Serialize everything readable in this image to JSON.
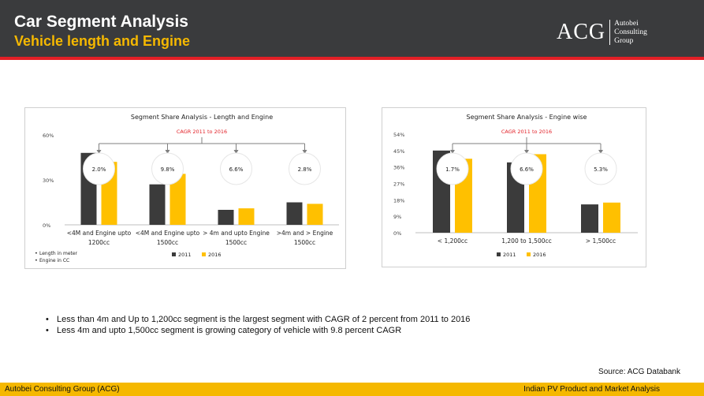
{
  "header": {
    "title": "Car Segment Analysis",
    "subtitle": "Vehicle length and Engine",
    "logo": {
      "mark": "ACG",
      "line1": "Autobei",
      "line2": "Consulting",
      "line3": "Group"
    }
  },
  "colors": {
    "series_2011": "#3b3b3b",
    "series_2016": "#ffc000",
    "cagr_text": "#e21f26",
    "accent": "#f5b800"
  },
  "chart_data": [
    {
      "type": "bar",
      "title": "Segment Share Analysis - Length and Engine",
      "annotation": "CAGR 2011 to 2016",
      "categories": [
        [
          "<4M and Engine upto",
          "1200cc"
        ],
        [
          "<4M and Engine upto",
          "1500cc"
        ],
        [
          "> 4m and upto Engine",
          "1500cc"
        ],
        [
          ">4m and > Engine",
          "1500cc"
        ]
      ],
      "series": [
        {
          "name": "2011",
          "values": [
            48,
            27,
            10,
            15
          ]
        },
        {
          "name": "2016",
          "values": [
            42,
            34,
            11,
            14
          ]
        }
      ],
      "cagr": [
        "2.0%",
        "9.8%",
        "6.6%",
        "2.8%"
      ],
      "yticks": [
        "0%",
        "30%",
        "60%"
      ],
      "ylim": [
        0,
        60
      ],
      "legend_placement": "bottom",
      "notes": [
        "Length in meter",
        "Engine in CC"
      ],
      "grid": false
    },
    {
      "type": "bar",
      "title": "Segment Share Analysis - Engine wise",
      "annotation": "CAGR 2011 to 2016",
      "categories": [
        [
          "< 1,200cc"
        ],
        [
          "1,200 to 1,500cc"
        ],
        [
          "> 1,500cc"
        ]
      ],
      "series": [
        {
          "name": "2011",
          "values": [
            45,
            38.5,
            15.5
          ]
        },
        {
          "name": "2016",
          "values": [
            40.5,
            43,
            16.5
          ]
        }
      ],
      "cagr": [
        "1.7%",
        "6.6%",
        "5.3%"
      ],
      "yticks": [
        "0%",
        "9%",
        "18%",
        "27%",
        "36%",
        "45%",
        "54%"
      ],
      "ylim": [
        0,
        54
      ],
      "legend_placement": "bottom",
      "grid": false
    }
  ],
  "bullets": [
    "Less than 4m and Up to 1,200cc segment is the largest segment with CAGR of 2 percent from 2011 to 2016",
    "Less 4m and upto 1,500cc segment is growing category of vehicle with 9.8 percent CAGR"
  ],
  "source": "Source: ACG Databank",
  "footer": {
    "left": "Autobei Consulting Group (ACG)",
    "right": "Indian PV Product and Market Analysis"
  }
}
